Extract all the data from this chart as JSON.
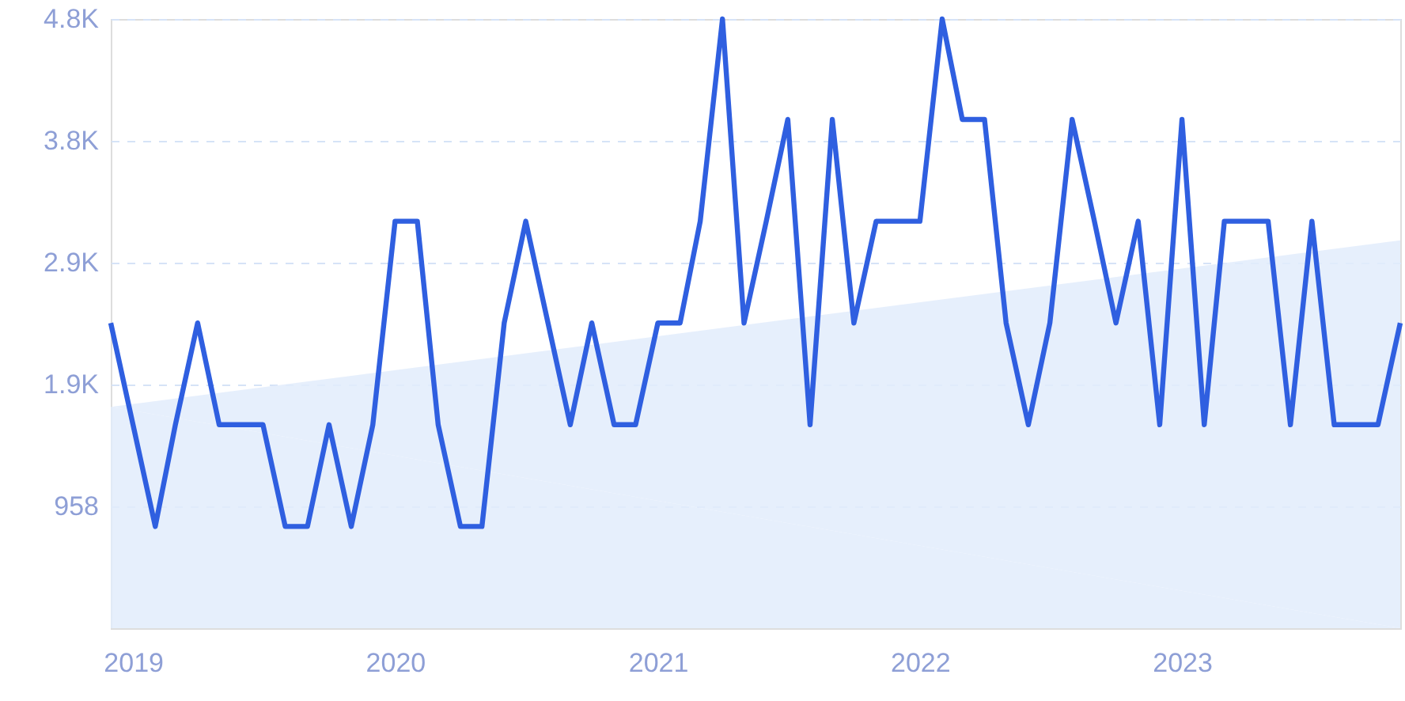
{
  "chart_data": {
    "type": "line",
    "xlim": [
      "2018-12",
      "2023-11"
    ],
    "xticks": [
      "2019",
      "2020",
      "2021",
      "2022",
      "2023"
    ],
    "ylim": [
      0,
      4790
    ],
    "yticks": [
      958,
      {
        "value": 1916,
        "label": "1.9K"
      },
      {
        "value": 2874,
        "label": "2.9K"
      },
      {
        "value": 3832,
        "label": "3.8K"
      },
      {
        "value": 4790,
        "label": "4.8K"
      }
    ],
    "grid": "y",
    "series": [
      {
        "type": "area",
        "color": "#e2ecfb",
        "x": [
          "2018-12",
          "2023-11"
        ],
        "values": [
          1740,
          3050
        ]
      },
      {
        "color": "#2f5fe0",
        "line_style": "solid",
        "x": [
          "2018-12",
          "2019-01",
          "2019-02",
          "2019-03",
          "2019-04",
          "2019-05",
          "2019-06",
          "2019-07",
          "2019-08",
          "2019-09",
          "2019-10",
          "2019-11",
          "2019-12",
          "2020-01",
          "2020-02",
          "2020-03",
          "2020-04",
          "2020-05",
          "2020-06",
          "2020-07",
          "2020-08",
          "2020-09",
          "2020-10",
          "2020-11",
          "2020-12",
          "2021-01",
          "2021-02",
          "2021-03",
          "2021-04",
          "2021-05",
          "2021-06",
          "2021-07",
          "2021-08",
          "2021-09",
          "2021-10",
          "2021-11",
          "2021-12",
          "2022-01",
          "2022-02",
          "2022-03",
          "2022-04",
          "2022-05",
          "2022-06",
          "2022-07",
          "2022-08",
          "2022-09",
          "2022-10",
          "2022-11",
          "2022-12",
          "2023-01",
          "2023-02",
          "2023-03",
          "2023-04",
          "2023-05",
          "2023-06",
          "2023-07",
          "2023-08",
          "2023-09",
          "2023-10",
          "2023-11"
        ],
        "values": [
          2400,
          1600,
          800,
          1600,
          2400,
          1600,
          1600,
          1600,
          800,
          800,
          1600,
          800,
          1600,
          3200,
          3200,
          1600,
          800,
          800,
          2400,
          3200,
          2400,
          1600,
          2400,
          1600,
          1600,
          2400,
          2400,
          3200,
          4790,
          2400,
          3200,
          4000,
          1600,
          4000,
          2400,
          3200,
          3200,
          3200,
          4790,
          4000,
          4000,
          2400,
          1600,
          2400,
          4000,
          3200,
          2400,
          3200,
          1600,
          4000,
          1600,
          3200,
          3200,
          3200,
          1600,
          3200,
          1600,
          1600,
          1600,
          2400
        ]
      }
    ]
  }
}
